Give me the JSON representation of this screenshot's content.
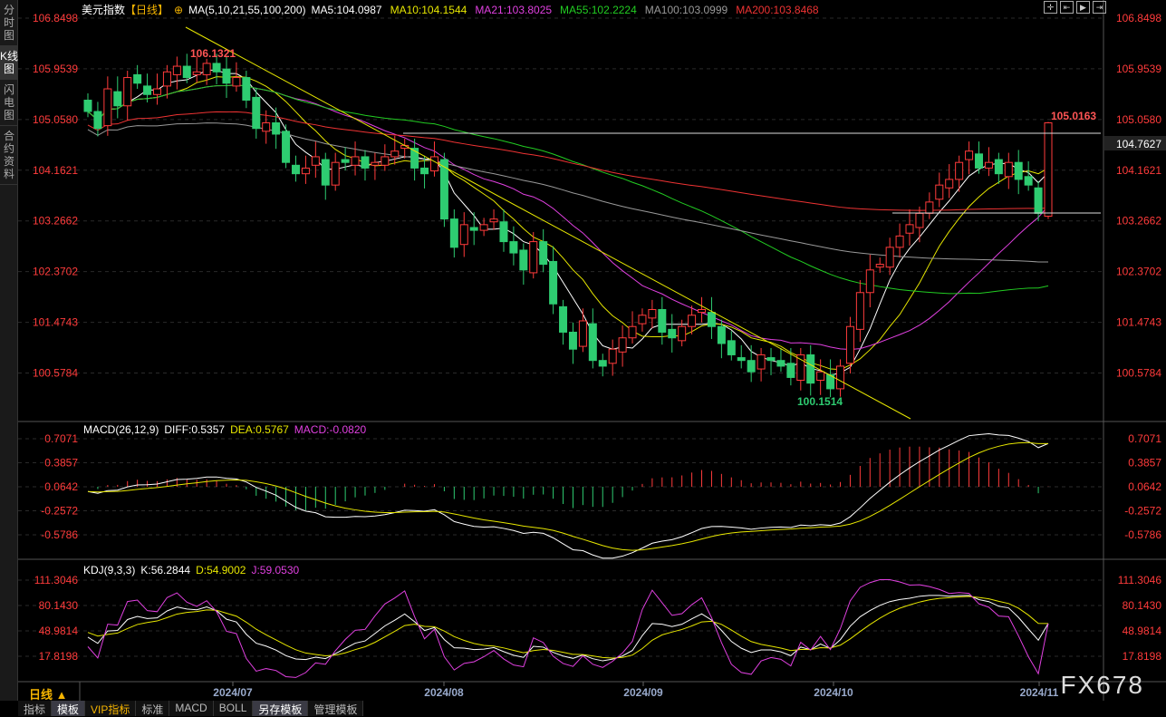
{
  "sidebar": {
    "tabs": [
      "分时图",
      "K线图",
      "闪电图",
      "合约资料"
    ],
    "selected": 1
  },
  "header": {
    "title": "美元指数",
    "period_tag": "【日线】",
    "ma_label": "MA(5,10,21,55,100,200)",
    "ma": [
      {
        "label": "MA5:104.0987",
        "color": "#ffffff"
      },
      {
        "label": "MA10:104.1544",
        "color": "#e6e600"
      },
      {
        "label": "MA21:103.8025",
        "color": "#e040e0"
      },
      {
        "label": "MA55:102.2224",
        "color": "#22cc22"
      },
      {
        "label": "MA100:103.0999",
        "color": "#999999"
      },
      {
        "label": "MA200:103.8468",
        "color": "#ee3333"
      }
    ]
  },
  "macd_legend": {
    "name": "MACD(26,12,9)",
    "diff": "DIFF:0.5357",
    "dea": "DEA:0.5767",
    "macd": "MACD:-0.0820"
  },
  "kdj_legend": {
    "name": "KDJ(9,3,3)",
    "k": "K:56.2844",
    "d": "D:54.9002",
    "j": "J:59.0530"
  },
  "tools": [
    "crosshair-icon",
    "zoom-in-icon",
    "zoom-fit-icon",
    "scroll-right-icon"
  ],
  "period": "日线 ▲",
  "bottom_tabs": [
    "指标",
    "模板",
    "VIP指标",
    "标准",
    "MACD",
    "BOLL",
    "另存模板",
    "管理模板"
  ],
  "watermark": "FX678",
  "colors": {
    "up": "#ff3b3b",
    "down": "#2ecc71",
    "trend": "#e6e600",
    "axis": "#ff3b3b"
  },
  "chart_data": [
    {
      "type": "candlestick",
      "title": "美元指数 日线",
      "y_ticks": [
        "106.8498",
        "105.9539",
        "105.0580",
        "104.1621",
        "103.2662",
        "102.3702",
        "101.4743",
        "100.5784"
      ],
      "ylim": [
        100.0,
        107.0
      ],
      "x_ticks": [
        "2024/07",
        "2024/08",
        "2024/09",
        "2024/10",
        "2024/11"
      ],
      "annotations": {
        "high": "106.1321",
        "low": "100.1514",
        "last": "105.0163",
        "current": "104.7627"
      },
      "closes": [
        105.2,
        104.9,
        105.6,
        105.3,
        105.8,
        105.7,
        105.5,
        105.6,
        105.9,
        106.0,
        105.8,
        105.9,
        106.05,
        105.9,
        105.7,
        105.8,
        105.4,
        104.9,
        105.0,
        104.8,
        104.3,
        104.1,
        104.2,
        104.4,
        103.9,
        104.3,
        104.3,
        104.4,
        104.2,
        104.3,
        104.4,
        104.5,
        104.6,
        104.2,
        104.1,
        104.4,
        103.3,
        102.8,
        103.2,
        103.1,
        103.2,
        103.3,
        102.9,
        102.7,
        102.4,
        102.9,
        102.5,
        101.8,
        101.3,
        101.0,
        101.5,
        100.8,
        100.7,
        101.0,
        101.2,
        101.4,
        101.6,
        101.7,
        101.3,
        101.2,
        101.4,
        101.6,
        101.7,
        101.4,
        101.1,
        100.9,
        100.8,
        100.6,
        100.9,
        100.8,
        100.7,
        100.5,
        100.9,
        100.4,
        100.6,
        100.3,
        100.7,
        101.4,
        102.0,
        102.4,
        102.5,
        102.8,
        103.0,
        103.2,
        103.4,
        103.6,
        103.9,
        104.0,
        104.3,
        104.5,
        104.2,
        104.3,
        104.1,
        104.3,
        104.0,
        103.9,
        103.4,
        105.0
      ]
    },
    {
      "type": "line",
      "name": "MACD(26,12,9)",
      "y_ticks": [
        "0.7071",
        "0.3857",
        "0.0642",
        "-0.2572",
        "-0.5786"
      ],
      "ylim": [
        -0.75,
        0.85
      ]
    },
    {
      "type": "line",
      "name": "KDJ(9,3,3)",
      "y_ticks": [
        "111.3046",
        "80.1430",
        "48.9814",
        "17.8198"
      ],
      "ylim": [
        0,
        125
      ]
    }
  ]
}
